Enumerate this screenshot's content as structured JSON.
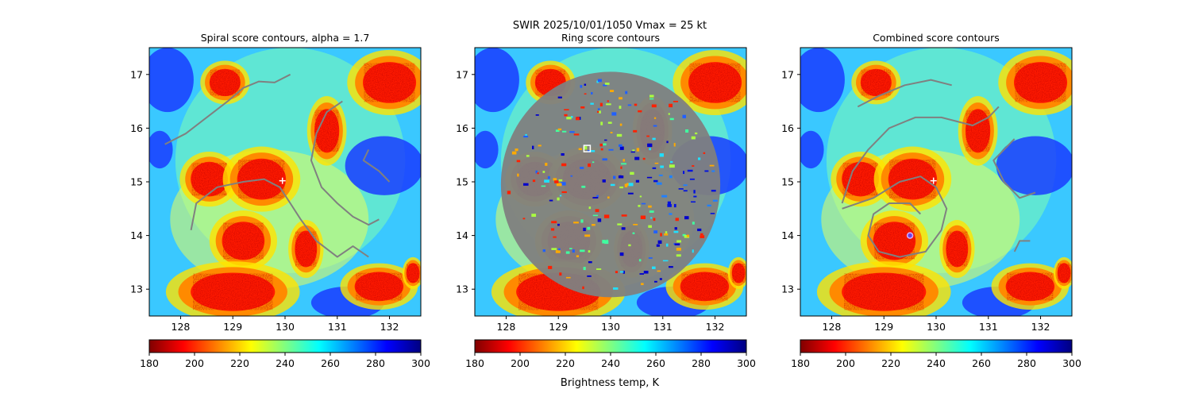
{
  "suptitle": "SWIR  2025/10/01/1050    Vmax = 25 kt",
  "colorbar_label": "Brightness temp, K",
  "colormap": [
    "#800000",
    "#ff0000",
    "#ff8000",
    "#ffff00",
    "#80ff80",
    "#00ffff",
    "#0080ff",
    "#0000ff",
    "#000080"
  ],
  "contour_color": "#808080",
  "marker_color": "#ffffff",
  "chart_data": [
    {
      "type": "heatmap",
      "title": "Spiral score contours, alpha =  1.7",
      "xlim": [
        127.4,
        132.6
      ],
      "ylim": [
        12.5,
        17.5
      ],
      "xticks": [
        128,
        129,
        130,
        131,
        132
      ],
      "yticks": [
        13,
        14,
        15,
        16,
        17
      ],
      "colorbar": {
        "range": [
          180,
          300
        ],
        "ticks": [
          180,
          200,
          220,
          240,
          260,
          280,
          300
        ]
      },
      "center_marker": {
        "symbol": "+",
        "lon": 129.95,
        "lat": 15.02
      },
      "contours": [
        [
          [
            127.7,
            15.7
          ],
          [
            128.1,
            15.9
          ],
          [
            128.5,
            16.2
          ],
          [
            128.9,
            16.5
          ],
          [
            129.2,
            16.75
          ],
          [
            129.5,
            16.87
          ],
          [
            129.8,
            16.85
          ],
          [
            130.1,
            17.0
          ]
        ],
        [
          [
            128.2,
            14.1
          ],
          [
            128.3,
            14.6
          ],
          [
            128.7,
            14.9
          ],
          [
            129.2,
            15.0
          ],
          [
            129.6,
            15.05
          ],
          [
            129.9,
            14.9
          ],
          [
            130.1,
            14.6
          ],
          [
            130.3,
            14.3
          ],
          [
            130.6,
            13.9
          ],
          [
            131.0,
            13.6
          ],
          [
            131.3,
            13.8
          ],
          [
            131.6,
            13.6
          ]
        ],
        [
          [
            131.1,
            16.5
          ],
          [
            130.8,
            16.3
          ],
          [
            130.6,
            15.9
          ],
          [
            130.5,
            15.4
          ],
          [
            130.7,
            14.9
          ],
          [
            131.0,
            14.6
          ],
          [
            131.3,
            14.35
          ],
          [
            131.6,
            14.2
          ],
          [
            131.8,
            14.3
          ]
        ],
        [
          [
            131.6,
            15.6
          ],
          [
            131.5,
            15.4
          ],
          [
            131.8,
            15.2
          ],
          [
            132.0,
            15.0
          ]
        ]
      ]
    },
    {
      "type": "heatmap",
      "title": "Ring score contours",
      "xlim": [
        127.4,
        132.6
      ],
      "ylim": [
        12.5,
        17.5
      ],
      "xticks": [
        128,
        129,
        130,
        131,
        132
      ],
      "yticks": [
        13,
        14,
        15,
        16,
        17
      ],
      "colorbar": {
        "range": [
          180,
          300
        ],
        "ticks": [
          180,
          200,
          220,
          240,
          260,
          280,
          300
        ]
      },
      "center_marker": {
        "symbol": "square",
        "lon": 129.55,
        "lat": 15.62
      },
      "ring_region": {
        "center_lon": 130.0,
        "center_lat": 14.95,
        "radius_deg": 2.1
      }
    },
    {
      "type": "heatmap",
      "title": "Combined score contours",
      "xlim": [
        127.4,
        132.6
      ],
      "ylim": [
        12.5,
        17.5
      ],
      "xticks": [
        128,
        129,
        130,
        131,
        132
      ],
      "yticks": [
        13,
        14,
        15,
        16,
        17
      ],
      "colorbar": {
        "range": [
          180,
          300
        ],
        "ticks": [
          180,
          200,
          220,
          240,
          260,
          280,
          300
        ]
      },
      "center_marker": {
        "symbol": "+",
        "lon": 129.95,
        "lat": 15.02
      },
      "secondary_marker": {
        "symbol": "circle",
        "lon": 129.5,
        "lat": 14.0
      },
      "contours": [
        [
          [
            128.5,
            16.4
          ],
          [
            128.9,
            16.6
          ],
          [
            129.4,
            16.8
          ],
          [
            129.9,
            16.9
          ],
          [
            130.3,
            16.8
          ]
        ],
        [
          [
            128.2,
            14.6
          ],
          [
            128.4,
            15.2
          ],
          [
            128.7,
            15.6
          ],
          [
            129.1,
            16.0
          ],
          [
            129.6,
            16.2
          ],
          [
            130.1,
            16.2
          ],
          [
            130.7,
            16.05
          ],
          [
            131.0,
            16.2
          ],
          [
            131.2,
            16.4
          ]
        ],
        [
          [
            128.2,
            14.5
          ],
          [
            128.8,
            14.7
          ],
          [
            129.3,
            15.0
          ],
          [
            129.7,
            15.1
          ],
          [
            130.0,
            14.9
          ],
          [
            130.2,
            14.5
          ],
          [
            130.1,
            14.1
          ],
          [
            129.8,
            13.7
          ],
          [
            129.3,
            13.6
          ],
          [
            128.9,
            13.7
          ],
          [
            128.7,
            14.0
          ],
          [
            128.8,
            14.4
          ],
          [
            129.1,
            14.6
          ],
          [
            129.5,
            14.6
          ],
          [
            129.7,
            14.4
          ]
        ],
        [
          [
            131.5,
            15.8
          ],
          [
            131.1,
            15.4
          ],
          [
            131.3,
            15.0
          ],
          [
            131.6,
            14.7
          ],
          [
            131.9,
            14.8
          ]
        ],
        [
          [
            131.5,
            13.7
          ],
          [
            131.6,
            13.9
          ],
          [
            131.8,
            13.9
          ]
        ]
      ]
    }
  ]
}
